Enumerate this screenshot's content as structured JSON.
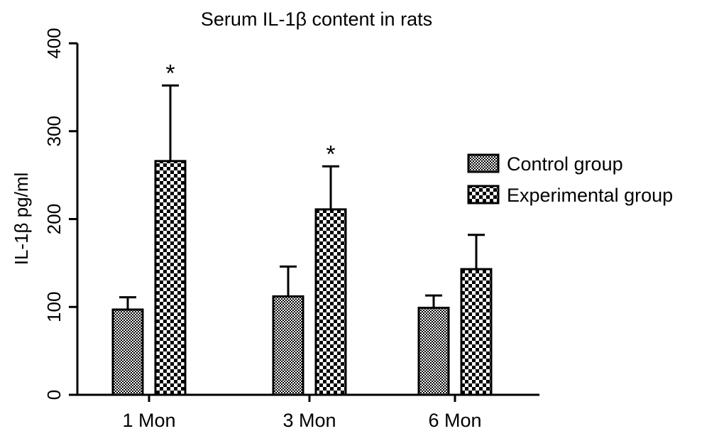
{
  "chart_data": {
    "type": "bar",
    "title": "Serum IL-1β content in rats",
    "ylabel": "IL-1β pg/ml",
    "xlabel": "",
    "categories": [
      "1 Mon",
      "3 Mon",
      "6 Mon"
    ],
    "ylim": [
      0,
      400
    ],
    "yticks": [
      0,
      100,
      200,
      300,
      400
    ],
    "grid": false,
    "legend_position": "right",
    "series": [
      {
        "name": "Control group",
        "values": [
          97,
          112,
          99
        ],
        "errors": [
          14,
          34,
          14
        ],
        "significance": [
          "",
          "",
          ""
        ]
      },
      {
        "name": "Experimental group",
        "values": [
          266,
          211,
          143
        ],
        "errors": [
          86,
          49,
          39
        ],
        "significance": [
          "*",
          "*",
          ""
        ]
      }
    ]
  },
  "colors": {
    "ink": "#000000",
    "background": "#ffffff"
  }
}
